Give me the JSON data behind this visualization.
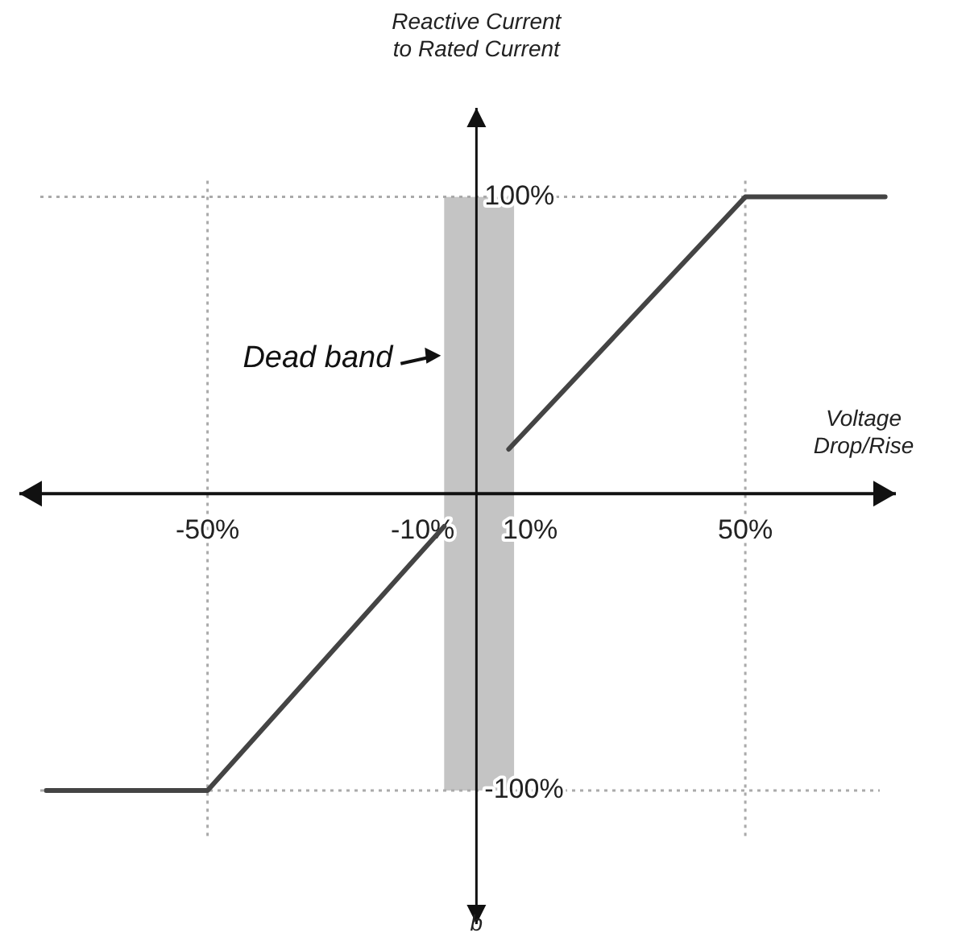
{
  "chart_data": {
    "type": "line",
    "xlabel": "Voltage Drop/Rise",
    "ylabel": "Reactive Current to Rated Current",
    "x": [
      -80,
      -50,
      -6,
      0,
      6,
      50,
      76
    ],
    "series": [
      {
        "color": "#444444",
        "values": [
          -100,
          -100,
          -11,
          null,
          15,
          100,
          100
        ]
      }
    ],
    "xlim": [
      -85,
      78
    ],
    "ylim": [
      -145,
      130
    ],
    "xticks": [
      {
        "value": -50,
        "label": "-50%"
      },
      {
        "value": -10,
        "label": "-10%"
      },
      {
        "value": 10,
        "label": "10%"
      },
      {
        "value": 50,
        "label": "50%"
      }
    ],
    "yticks": [
      {
        "value": -100,
        "label": "-100%"
      },
      {
        "value": 100,
        "label": "100%"
      }
    ],
    "ref_lines": [
      {
        "axis": "x",
        "value": -50,
        "line_style": "dotted",
        "color": "#aaaaaa"
      },
      {
        "axis": "x",
        "value": 50,
        "line_style": "dotted",
        "color": "#aaaaaa"
      },
      {
        "axis": "y",
        "value": 100,
        "line_style": "dotted",
        "color": "#aaaaaa"
      },
      {
        "axis": "y",
        "value": -100,
        "line_style": "dotted",
        "color": "#aaaaaa"
      }
    ],
    "bands": [
      {
        "axis": "x",
        "from": -6,
        "to": 7,
        "color": "#c4c4c4"
      }
    ],
    "annotations": [
      {
        "text": "Dead band",
        "x": -6,
        "y": 46
      },
      "b"
    ],
    "marker": "none",
    "line_style": "solid",
    "grid": false
  }
}
